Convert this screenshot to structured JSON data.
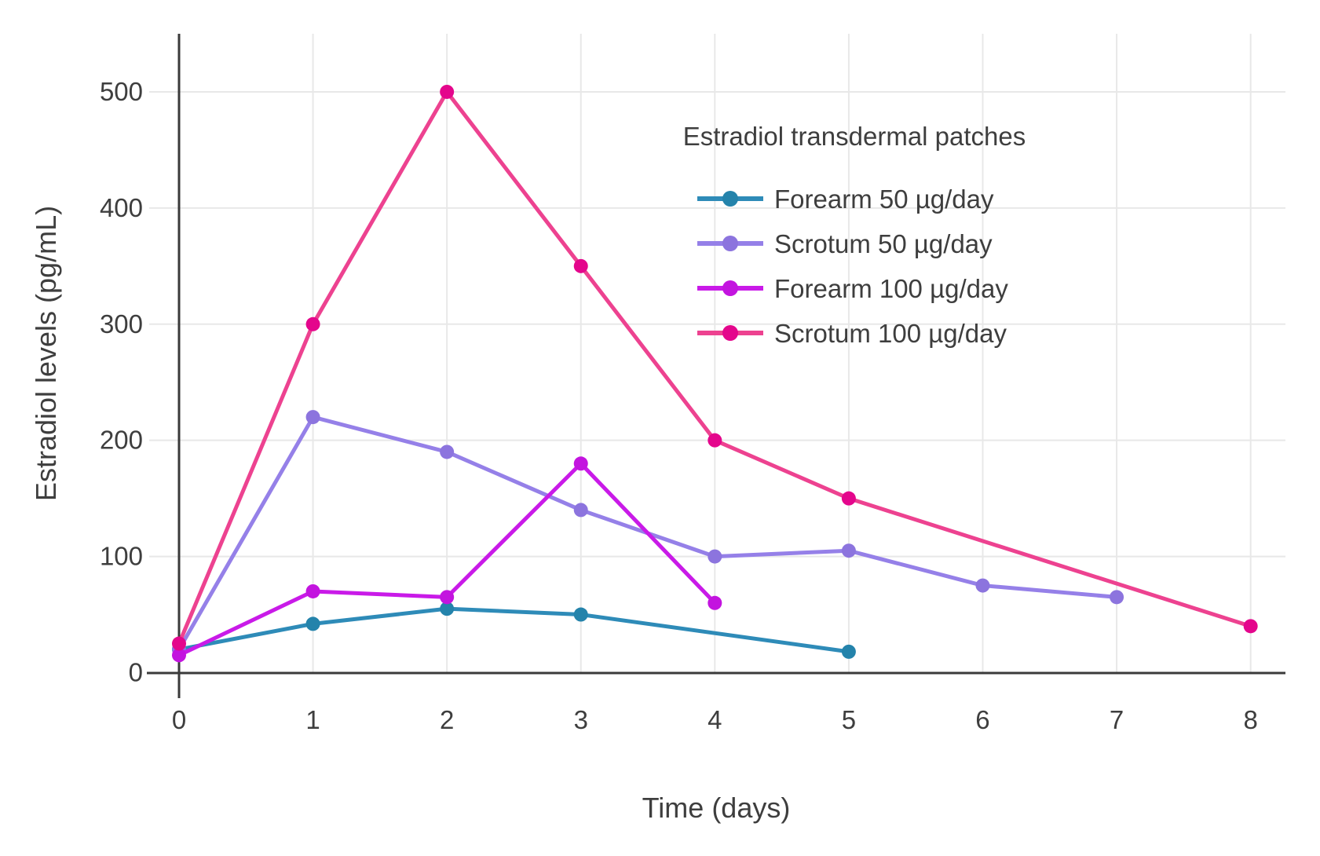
{
  "chart_data": {
    "type": "line",
    "title": "",
    "legend_title": "Estradiol transdermal patches",
    "xlabel": "Time (days)",
    "ylabel": "Estradiol levels (pg/mL)",
    "xlim": [
      0,
      8.26
    ],
    "ylim": [
      0,
      550
    ],
    "x_ticks": [
      0,
      1,
      2,
      3,
      4,
      5,
      6,
      7,
      8
    ],
    "y_ticks": [
      0,
      100,
      200,
      300,
      400,
      500
    ],
    "grid": true,
    "legend_position": "top-right-inside",
    "series": [
      {
        "name": "Forearm 50 µg/day",
        "line_color": "#2E8BB8",
        "marker_color": "#2483AB",
        "x": [
          0,
          1,
          2,
          3,
          5
        ],
        "y": [
          20,
          42,
          55,
          50,
          18
        ]
      },
      {
        "name": "Scrotum 50 µg/day",
        "line_color": "#9580E8",
        "marker_color": "#8C74DE",
        "x": [
          0,
          1,
          2,
          3,
          4,
          5,
          6,
          7
        ],
        "y": [
          20,
          220,
          190,
          140,
          100,
          105,
          75,
          65
        ]
      },
      {
        "name": "Forearm 100 µg/day",
        "line_color": "#C91AE8",
        "marker_color": "#C314DF",
        "x": [
          0,
          1,
          2,
          3,
          4
        ],
        "y": [
          15,
          70,
          65,
          180,
          60
        ]
      },
      {
        "name": "Scrotum 100 µg/day",
        "line_color": "#ED4290",
        "marker_color": "#E4068C",
        "x": [
          0,
          1,
          2,
          3,
          4,
          5,
          8
        ],
        "y": [
          25,
          300,
          500,
          350,
          200,
          150,
          40
        ]
      }
    ]
  },
  "colors": {
    "text": "#3E3E3E",
    "axis": "#3A3A3A",
    "grid": "#E8E8E8",
    "background": "#FFFFFF"
  }
}
